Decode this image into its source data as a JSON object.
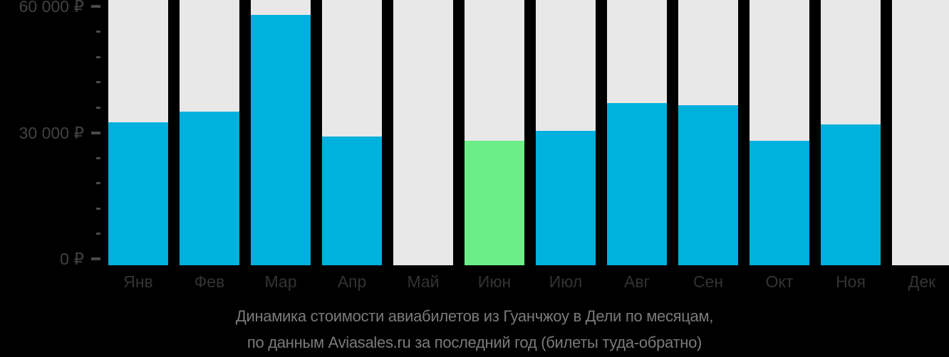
{
  "chart_data": {
    "type": "bar",
    "title": "Динамика стоимости авиабилетов из Гуанчжоу в Дели по месяцам, по данным Aviasales.ru за последний год (билеты туда-обратно)",
    "title_line1": "Динамика стоимости авиабилетов из Гуанчжоу в Дели по месяцам,",
    "title_line2": "по данным Aviasales.ru за последний год (билеты туда-обратно)",
    "categories": [
      "Янв",
      "Фев",
      "Мар",
      "Апр",
      "Май",
      "Июн",
      "Июл",
      "Авг",
      "Сен",
      "Окт",
      "Ноя",
      "Дек"
    ],
    "values": [
      32500,
      35000,
      58000,
      29000,
      null,
      28000,
      30500,
      37000,
      36500,
      28000,
      32000,
      null
    ],
    "highlight_index": 5,
    "highlight_category": "Июн",
    "currency": "₽",
    "ylim": [
      0,
      60000
    ],
    "ytick_minor_step": 6000,
    "ytick_major_step": 30000,
    "ytick_labels": [
      {
        "value": 0,
        "label": "0 ₽"
      },
      {
        "value": 30000,
        "label": "30 000 ₽"
      },
      {
        "value": 60000,
        "label": "60 000 ₽"
      }
    ],
    "grid": "off",
    "legend": "none",
    "colors": {
      "background": "#000000",
      "bar": "#00b0dd",
      "bar_highlight": "#6cee87",
      "bar_track": "#e8e8e8",
      "axis_tick": "#4a4a4a",
      "axis_label": "#414141",
      "month_label": "#333333",
      "caption": "#7a7a7a"
    }
  }
}
